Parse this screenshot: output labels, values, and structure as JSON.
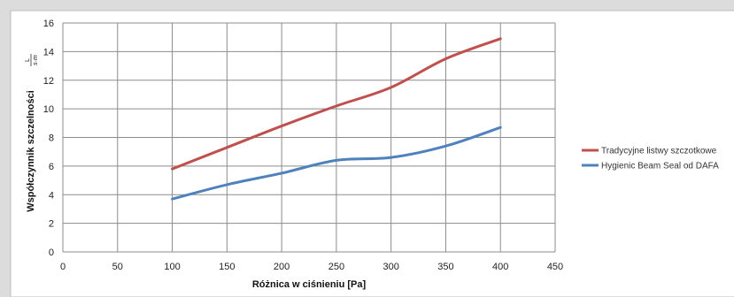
{
  "chart_data": {
    "type": "line",
    "xlabel": "Różnica w ciśnieniu [Pa]",
    "ylabel": "Współczynnik szczelności",
    "ylabel_unit_numerator": "L",
    "ylabel_unit_denominator": "s·m",
    "xlim": [
      0,
      450
    ],
    "ylim": [
      0,
      16
    ],
    "x_ticks": [
      0,
      50,
      100,
      150,
      200,
      250,
      300,
      350,
      400,
      450
    ],
    "y_ticks": [
      0,
      2,
      4,
      6,
      8,
      10,
      12,
      14,
      16
    ],
    "grid": true,
    "legend_position": "right",
    "x": [
      100,
      150,
      200,
      250,
      300,
      350,
      400
    ],
    "series": [
      {
        "name": "Tradycyjne listwy szczotkowe",
        "color": "#c0504d",
        "values": [
          5.8,
          7.3,
          8.8,
          10.2,
          11.5,
          13.5,
          14.9
        ]
      },
      {
        "name": "Hygienic Beam Seal od DAFA",
        "color": "#4f81bd",
        "values": [
          3.7,
          4.7,
          5.5,
          6.4,
          6.6,
          7.4,
          8.7
        ]
      }
    ]
  }
}
